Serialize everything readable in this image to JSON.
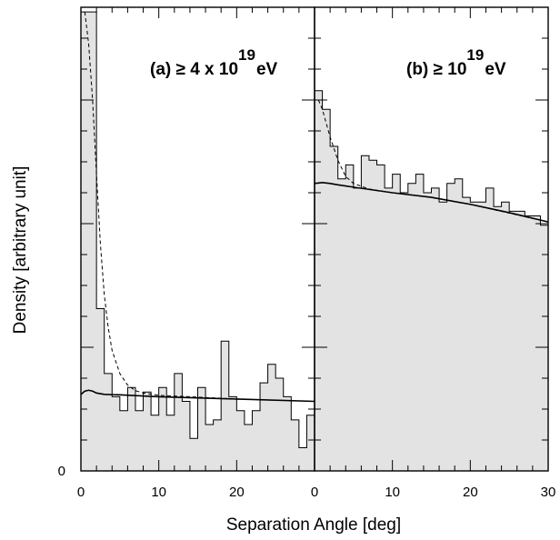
{
  "figure": {
    "ylabel": "Density [arbitrary unit]",
    "xlabel": "Separation Angle [deg]",
    "y_origin_label": "0"
  },
  "chart_data": [
    {
      "type": "bar",
      "panel_label": "(a) ≥ 4 x 10",
      "panel_label_exponent": "19",
      "panel_label_unit": "eV",
      "bin_width": 1,
      "x_ticks": [
        "0",
        "10",
        "20"
      ],
      "xlim": [
        0,
        30
      ],
      "ylim": [
        0,
        1
      ],
      "histogram": [
        0.99,
        0.99,
        0.35,
        0.21,
        0.16,
        0.13,
        0.18,
        0.13,
        0.17,
        0.12,
        0.18,
        0.12,
        0.21,
        0.15,
        0.07,
        0.18,
        0.1,
        0.11,
        0.28,
        0.16,
        0.13,
        0.1,
        0.13,
        0.19,
        0.23,
        0.2,
        0.16,
        0.11,
        0.05,
        0.12
      ],
      "solid_curve": {
        "x": [
          0,
          0.5,
          1,
          1.5,
          2,
          3,
          5,
          10,
          20,
          30
        ],
        "y": [
          0.165,
          0.172,
          0.174,
          0.172,
          0.168,
          0.165,
          0.164,
          0.16,
          0.155,
          0.15
        ]
      },
      "dashed_curve": {
        "x": [
          0.5,
          1,
          1.5,
          2,
          2.5,
          3,
          3.5,
          4,
          5,
          6,
          7,
          8,
          10,
          14,
          20,
          30
        ],
        "y": [
          0.99,
          0.92,
          0.8,
          0.64,
          0.49,
          0.38,
          0.31,
          0.26,
          0.21,
          0.185,
          0.173,
          0.168,
          0.163,
          0.16,
          0.155,
          0.15
        ]
      }
    },
    {
      "type": "bar",
      "panel_label": "(b) ≥ 10",
      "panel_label_exponent": "19",
      "panel_label_unit": "eV",
      "bin_width": 1,
      "x_ticks": [
        "0",
        "10",
        "20",
        "30"
      ],
      "xlim": [
        0,
        30
      ],
      "ylim": [
        0,
        1
      ],
      "histogram": [
        0.82,
        0.78,
        0.7,
        0.63,
        0.66,
        0.61,
        0.68,
        0.67,
        0.66,
        0.61,
        0.64,
        0.6,
        0.62,
        0.64,
        0.6,
        0.61,
        0.58,
        0.62,
        0.63,
        0.59,
        0.58,
        0.58,
        0.61,
        0.57,
        0.58,
        0.56,
        0.56,
        0.55,
        0.55,
        0.53
      ],
      "solid_curve": {
        "x": [
          0,
          1,
          2,
          3,
          5,
          10,
          15,
          20,
          25,
          30
        ],
        "y": [
          0.62,
          0.622,
          0.62,
          0.617,
          0.612,
          0.6,
          0.59,
          0.575,
          0.557,
          0.537
        ]
      },
      "dashed_curve": {
        "x": [
          0.5,
          1,
          1.5,
          2,
          3,
          4,
          5,
          7,
          10,
          15,
          20,
          30
        ],
        "y": [
          0.8,
          0.78,
          0.75,
          0.72,
          0.67,
          0.635,
          0.62,
          0.608,
          0.6,
          0.59,
          0.575,
          0.537
        ]
      }
    }
  ]
}
